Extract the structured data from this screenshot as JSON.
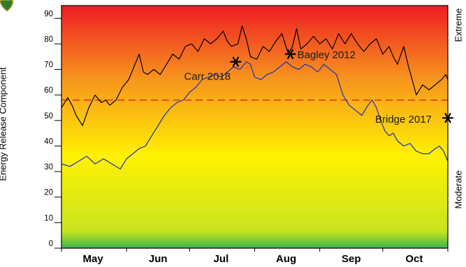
{
  "chart_data": {
    "type": "line",
    "ylabel": "Energy Release Component",
    "right_labels": {
      "top": "Extreme",
      "bottom": "Moderate"
    },
    "ylim": [
      0,
      95
    ],
    "yticks": [
      0,
      10,
      20,
      30,
      40,
      50,
      60,
      70,
      80,
      90
    ],
    "month_labels": [
      "May",
      "Jun",
      "Jul",
      "Aug",
      "Sep",
      "Oct"
    ],
    "month_label_days": [
      15,
      46,
      76,
      107,
      138,
      168
    ],
    "xlim": [
      0,
      184
    ],
    "reference_line": {
      "value": 58,
      "color": "#e8201e",
      "style": "dashed"
    },
    "background_gradient": [
      "#ee1c24",
      "#f7941d",
      "#fff200",
      "#c9e31f",
      "#39b54a"
    ],
    "series": [
      {
        "color": "#000000",
        "points": [
          [
            0,
            55
          ],
          [
            3,
            59
          ],
          [
            5,
            56
          ],
          [
            7,
            52
          ],
          [
            10,
            48
          ],
          [
            13,
            55
          ],
          [
            16,
            60
          ],
          [
            19,
            57
          ],
          [
            21,
            58
          ],
          [
            23,
            56
          ],
          [
            26,
            58
          ],
          [
            29,
            63
          ],
          [
            32,
            66
          ],
          [
            35,
            72
          ],
          [
            37,
            76
          ],
          [
            39,
            69
          ],
          [
            41,
            68
          ],
          [
            44,
            70
          ],
          [
            47,
            68
          ],
          [
            50,
            72
          ],
          [
            53,
            76
          ],
          [
            56,
            74
          ],
          [
            59,
            79
          ],
          [
            62,
            80
          ],
          [
            65,
            77
          ],
          [
            68,
            82
          ],
          [
            71,
            80
          ],
          [
            74,
            82
          ],
          [
            77,
            85
          ],
          [
            79,
            81
          ],
          [
            81,
            79
          ],
          [
            84,
            80
          ],
          [
            86,
            87
          ],
          [
            88,
            82
          ],
          [
            90,
            75
          ],
          [
            93,
            74
          ],
          [
            96,
            79
          ],
          [
            99,
            77
          ],
          [
            102,
            81
          ],
          [
            105,
            84
          ],
          [
            108,
            76
          ],
          [
            110,
            79
          ],
          [
            112,
            86
          ],
          [
            114,
            78
          ],
          [
            117,
            80
          ],
          [
            120,
            83
          ],
          [
            123,
            80
          ],
          [
            126,
            82
          ],
          [
            129,
            78
          ],
          [
            132,
            84
          ],
          [
            135,
            80
          ],
          [
            138,
            84
          ],
          [
            141,
            80
          ],
          [
            144,
            77
          ],
          [
            147,
            80
          ],
          [
            150,
            82
          ],
          [
            153,
            76
          ],
          [
            156,
            79
          ],
          [
            158,
            75
          ],
          [
            160,
            72
          ],
          [
            163,
            79
          ],
          [
            165,
            72
          ],
          [
            167,
            66
          ],
          [
            169,
            60
          ],
          [
            172,
            64
          ],
          [
            175,
            62
          ],
          [
            178,
            64
          ],
          [
            181,
            66
          ],
          [
            183,
            68
          ],
          [
            184,
            66
          ]
        ]
      },
      {
        "color": "#1f2fbd",
        "points": [
          [
            0,
            33
          ],
          [
            4,
            32
          ],
          [
            8,
            34
          ],
          [
            12,
            36
          ],
          [
            16,
            33
          ],
          [
            20,
            35
          ],
          [
            24,
            33
          ],
          [
            28,
            31
          ],
          [
            31,
            35
          ],
          [
            34,
            37
          ],
          [
            37,
            39
          ],
          [
            40,
            40
          ],
          [
            43,
            44
          ],
          [
            46,
            48
          ],
          [
            49,
            52
          ],
          [
            52,
            55
          ],
          [
            55,
            57
          ],
          [
            58,
            58
          ],
          [
            61,
            61
          ],
          [
            64,
            63
          ],
          [
            67,
            66
          ],
          [
            70,
            67
          ],
          [
            73,
            68
          ],
          [
            76,
            67
          ],
          [
            79,
            69
          ],
          [
            82,
            71
          ],
          [
            85,
            70
          ],
          [
            88,
            73
          ],
          [
            90,
            72
          ],
          [
            92,
            67
          ],
          [
            95,
            66
          ],
          [
            98,
            68
          ],
          [
            101,
            69
          ],
          [
            104,
            71
          ],
          [
            107,
            73
          ],
          [
            110,
            71
          ],
          [
            113,
            70
          ],
          [
            116,
            72
          ],
          [
            119,
            71
          ],
          [
            122,
            69
          ],
          [
            125,
            72
          ],
          [
            128,
            70
          ],
          [
            131,
            68
          ],
          [
            134,
            60
          ],
          [
            137,
            56
          ],
          [
            140,
            54
          ],
          [
            143,
            52
          ],
          [
            146,
            56
          ],
          [
            148,
            58
          ],
          [
            150,
            55
          ],
          [
            152,
            50
          ],
          [
            154,
            46
          ],
          [
            156,
            44
          ],
          [
            158,
            45
          ],
          [
            160,
            42
          ],
          [
            163,
            40
          ],
          [
            166,
            41
          ],
          [
            169,
            38
          ],
          [
            172,
            37
          ],
          [
            175,
            37
          ],
          [
            178,
            39
          ],
          [
            180,
            40
          ],
          [
            182,
            38
          ],
          [
            184,
            34
          ]
        ]
      }
    ],
    "annotations": [
      {
        "label": "Carr 2018",
        "day": 83,
        "value": 73
      },
      {
        "label": "Bagley 2012",
        "day": 109,
        "value": 76
      },
      {
        "label": "Bridge 2017",
        "day": 184,
        "value": 51
      }
    ]
  }
}
